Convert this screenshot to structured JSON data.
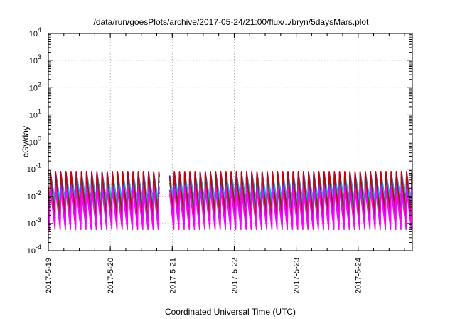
{
  "chart_data": {
    "type": "line",
    "title": "/data/run/goesPlots/archive/2017-05-24/21:00/flux/../bryn/5daysMars.plot",
    "xlabel": "Coordinated Universal Time (UTC)",
    "ylabel": "cGy/day",
    "x_scale": "time",
    "y_scale": "log",
    "xlim": [
      "2017-05-19T00:00",
      "2017-05-24T21:00"
    ],
    "ylim": [
      0.0001,
      10000
    ],
    "grid": true,
    "legend": "none",
    "x_ticks": [
      "2017-5-19",
      "2017-5-20",
      "2017-5-21",
      "2017-5-22",
      "2017-5-23",
      "2017-5-24"
    ],
    "y_ticks": [
      {
        "base": "10",
        "exp": "-4"
      },
      {
        "base": "10",
        "exp": "-3"
      },
      {
        "base": "10",
        "exp": "-2"
      },
      {
        "base": "10",
        "exp": "-1"
      },
      {
        "base": "10",
        "exp": "0"
      },
      {
        "base": "10",
        "exp": "1"
      },
      {
        "base": "10",
        "exp": "2"
      },
      {
        "base": "10",
        "exp": "3"
      },
      {
        "base": "10",
        "exp": "4"
      }
    ],
    "series_style": {
      "cycle_period_hours": 2,
      "gap": [
        "2017-05-20T19:00",
        "2017-05-20T23:00"
      ]
    },
    "series": [
      {
        "color": "#0000ff",
        "peak": 0.085,
        "trough": 0.006
      },
      {
        "color": "#00aaff",
        "peak": 0.075,
        "trough": 0.007
      },
      {
        "color": "#00cccc",
        "peak": 0.06,
        "trough": 0.005
      },
      {
        "color": "#008800",
        "peak": 0.045,
        "trough": 0.0035
      },
      {
        "color": "#cc0000",
        "peak": 0.095,
        "trough": 0.0012
      },
      {
        "color": "#a020f0",
        "peak": 0.028,
        "trough": 0.0009
      },
      {
        "color": "#ff00ff",
        "peak": 0.02,
        "trough": 0.0006
      }
    ]
  }
}
